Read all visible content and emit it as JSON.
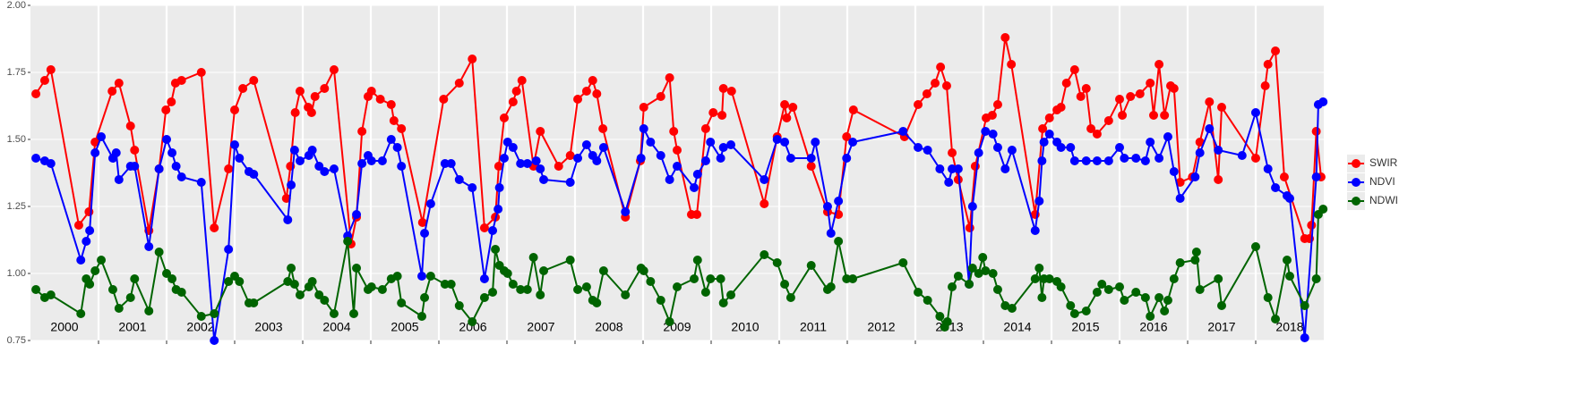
{
  "chart_data": {
    "type": "line",
    "xlim": [
      2000,
      2019
    ],
    "xticks": [
      2001,
      2002,
      2003,
      2004,
      2005,
      2006,
      2007,
      2008,
      2009,
      2010,
      2011,
      2012,
      2013,
      2014,
      2015,
      2016,
      2017,
      2018
    ],
    "year_labels": [
      "2000",
      "2001",
      "2002",
      "2003",
      "2004",
      "2005",
      "2006",
      "2007",
      "2008",
      "2009",
      "2010",
      "2011",
      "2012",
      "2013",
      "2014",
      "2015",
      "2016",
      "2017",
      "2018"
    ],
    "ylim": [
      0.75,
      2.0
    ],
    "yticks": [
      {
        "value": 0.75,
        "label": "0.75"
      },
      {
        "value": 1.0,
        "label": "1.00"
      },
      {
        "value": 1.25,
        "label": "1.25"
      },
      {
        "value": 1.5,
        "label": "1.50"
      },
      {
        "value": 1.75,
        "label": "1.75"
      },
      {
        "value": 2.0,
        "label": "2.00"
      }
    ],
    "grid": true,
    "legend": "right",
    "series": [
      {
        "name": "SWIR",
        "color": "#ff0000",
        "x": [
          2000.08,
          2000.21,
          2000.3,
          2000.71,
          2000.86,
          2000.95,
          2001.2,
          2001.3,
          2001.47,
          2001.53,
          2001.74,
          2001.89,
          2001.99,
          2002.07,
          2002.13,
          2002.22,
          2002.51,
          2002.7,
          2002.91,
          2003.0,
          2003.12,
          2003.28,
          2003.76,
          2003.82,
          2003.89,
          2003.96,
          2004.08,
          2004.13,
          2004.18,
          2004.32,
          2004.46,
          2004.71,
          2004.79,
          2004.87,
          2004.96,
          2005.01,
          2005.14,
          2005.3,
          2005.34,
          2005.45,
          2005.76,
          2006.07,
          2006.3,
          2006.49,
          2006.67,
          2006.83,
          2006.88,
          2006.96,
          2007.09,
          2007.14,
          2007.22,
          2007.39,
          2007.49,
          2007.76,
          2007.93,
          2008.04,
          2008.17,
          2008.26,
          2008.32,
          2008.41,
          2008.74,
          2008.96,
          2009.01,
          2009.26,
          2009.39,
          2009.45,
          2009.5,
          2009.71,
          2009.79,
          2009.92,
          2010.03,
          2010.16,
          2010.18,
          2010.3,
          2010.78,
          2010.97,
          2011.08,
          2011.11,
          2011.2,
          2011.47,
          2011.71,
          2011.87,
          2011.99,
          2012.09,
          2012.84,
          2013.04,
          2013.17,
          2013.29,
          2013.37,
          2013.46,
          2013.54,
          2013.63,
          2013.8,
          2013.88,
          2014.04,
          2014.13,
          2014.21,
          2014.32,
          2014.41,
          2014.76,
          2014.87,
          2014.97,
          2015.08,
          2015.14,
          2015.22,
          2015.34,
          2015.43,
          2015.51,
          2015.58,
          2015.67,
          2015.84,
          2016.0,
          2016.04,
          2016.16,
          2016.3,
          2016.45,
          2016.5,
          2016.58,
          2016.66,
          2016.75,
          2016.8,
          2016.89,
          2017.07,
          2017.18,
          2017.32,
          2017.45,
          2017.5,
          2018.0,
          2018.14,
          2018.18,
          2018.29,
          2018.42,
          2018.72,
          2018.79,
          2018.82,
          2018.89,
          2018.96
        ],
        "values": [
          1.67,
          1.72,
          1.76,
          1.18,
          1.23,
          1.49,
          1.68,
          1.71,
          1.55,
          1.46,
          1.16,
          1.39,
          1.61,
          1.64,
          1.71,
          1.72,
          1.75,
          1.17,
          1.39,
          1.61,
          1.69,
          1.72,
          1.28,
          1.4,
          1.6,
          1.68,
          1.62,
          1.6,
          1.66,
          1.69,
          1.76,
          1.11,
          1.21,
          1.53,
          1.66,
          1.68,
          1.65,
          1.63,
          1.57,
          1.54,
          1.19,
          1.65,
          1.71,
          1.8,
          1.17,
          1.21,
          1.4,
          1.58,
          1.64,
          1.68,
          1.72,
          1.4,
          1.53,
          1.4,
          1.44,
          1.65,
          1.68,
          1.72,
          1.67,
          1.54,
          1.21,
          1.42,
          1.62,
          1.66,
          1.73,
          1.53,
          1.46,
          1.22,
          1.22,
          1.54,
          1.6,
          1.59,
          1.69,
          1.68,
          1.26,
          1.51,
          1.63,
          1.58,
          1.62,
          1.4,
          1.23,
          1.22,
          1.51,
          1.61,
          1.51,
          1.63,
          1.67,
          1.71,
          1.77,
          1.7,
          1.45,
          1.35,
          1.17,
          1.4,
          1.58,
          1.59,
          1.63,
          1.88,
          1.78,
          1.22,
          1.54,
          1.58,
          1.61,
          1.62,
          1.71,
          1.76,
          1.66,
          1.69,
          1.54,
          1.52,
          1.57,
          1.65,
          1.59,
          1.66,
          1.67,
          1.71,
          1.59,
          1.78,
          1.59,
          1.7,
          1.69,
          1.34,
          1.36,
          1.49,
          1.64,
          1.35,
          1.62,
          1.43,
          1.7,
          1.78,
          1.83,
          1.36,
          1.13,
          1.13,
          1.18,
          1.53,
          1.36
        ]
      },
      {
        "name": "NDVI",
        "color": "#0000ff",
        "x": [
          2000.08,
          2000.21,
          2000.3,
          2000.74,
          2000.82,
          2000.87,
          2000.95,
          2001.04,
          2001.21,
          2001.26,
          2001.3,
          2001.47,
          2001.53,
          2001.74,
          2001.89,
          2002.0,
          2002.08,
          2002.14,
          2002.22,
          2002.51,
          2002.7,
          2002.91,
          2003.0,
          2003.07,
          2003.21,
          2003.28,
          2003.78,
          2003.83,
          2003.88,
          2003.96,
          2004.09,
          2004.14,
          2004.24,
          2004.32,
          2004.46,
          2004.66,
          2004.79,
          2004.87,
          2004.96,
          2005.01,
          2005.17,
          2005.3,
          2005.39,
          2005.45,
          2005.75,
          2005.79,
          2005.88,
          2006.09,
          2006.18,
          2006.3,
          2006.49,
          2006.67,
          2006.79,
          2006.87,
          2006.89,
          2006.96,
          2007.01,
          2007.09,
          2007.2,
          2007.3,
          2007.43,
          2007.49,
          2007.54,
          2007.93,
          2008.04,
          2008.17,
          2008.26,
          2008.32,
          2008.42,
          2008.74,
          2008.97,
          2009.01,
          2009.11,
          2009.26,
          2009.39,
          2009.5,
          2009.75,
          2009.8,
          2009.92,
          2009.99,
          2010.14,
          2010.18,
          2010.29,
          2010.78,
          2010.97,
          2011.08,
          2011.17,
          2011.47,
          2011.53,
          2011.71,
          2011.76,
          2011.87,
          2011.99,
          2012.08,
          2012.82,
          2013.04,
          2013.18,
          2013.36,
          2013.49,
          2013.54,
          2013.63,
          2013.79,
          2013.84,
          2013.93,
          2014.03,
          2014.14,
          2014.21,
          2014.32,
          2014.42,
          2014.76,
          2014.82,
          2014.86,
          2014.89,
          2014.97,
          2015.08,
          2015.14,
          2015.28,
          2015.34,
          2015.51,
          2015.67,
          2015.84,
          2016.0,
          2016.07,
          2016.24,
          2016.38,
          2016.45,
          2016.58,
          2016.71,
          2016.8,
          2016.89,
          2017.11,
          2017.18,
          2017.32,
          2017.45,
          2017.8,
          2018.0,
          2018.18,
          2018.29,
          2018.46,
          2018.5,
          2018.72,
          2018.89,
          2018.92,
          2018.99
        ],
        "values": [
          1.43,
          1.42,
          1.41,
          1.05,
          1.12,
          1.16,
          1.45,
          1.51,
          1.43,
          1.45,
          1.35,
          1.4,
          1.4,
          1.1,
          1.39,
          1.5,
          1.45,
          1.4,
          1.36,
          1.34,
          0.75,
          1.09,
          1.48,
          1.43,
          1.38,
          1.37,
          1.2,
          1.33,
          1.46,
          1.42,
          1.44,
          1.46,
          1.4,
          1.38,
          1.39,
          1.14,
          1.22,
          1.41,
          1.44,
          1.42,
          1.42,
          1.5,
          1.47,
          1.4,
          0.99,
          1.15,
          1.26,
          1.41,
          1.41,
          1.35,
          1.32,
          0.98,
          1.16,
          1.24,
          1.32,
          1.43,
          1.49,
          1.47,
          1.41,
          1.41,
          1.42,
          1.39,
          1.35,
          1.34,
          1.43,
          1.48,
          1.44,
          1.42,
          1.47,
          1.23,
          1.43,
          1.54,
          1.49,
          1.44,
          1.35,
          1.4,
          1.32,
          1.37,
          1.42,
          1.49,
          1.43,
          1.47,
          1.48,
          1.35,
          1.5,
          1.49,
          1.43,
          1.43,
          1.49,
          1.25,
          1.15,
          1.27,
          1.43,
          1.49,
          1.53,
          1.47,
          1.46,
          1.39,
          1.34,
          1.39,
          1.39,
          0.96,
          1.25,
          1.45,
          1.53,
          1.52,
          1.47,
          1.39,
          1.46,
          1.16,
          1.27,
          1.42,
          1.49,
          1.52,
          1.49,
          1.47,
          1.47,
          1.42,
          1.42,
          1.42,
          1.42,
          1.47,
          1.43,
          1.43,
          1.42,
          1.49,
          1.43,
          1.51,
          1.38,
          1.28,
          1.36,
          1.45,
          1.54,
          1.46,
          1.44,
          1.6,
          1.39,
          1.32,
          1.29,
          1.28,
          0.76,
          1.36,
          1.63,
          1.64
        ]
      },
      {
        "name": "NDWI",
        "color": "#006400",
        "x": [
          2000.08,
          2000.21,
          2000.3,
          2000.74,
          2000.82,
          2000.87,
          2000.95,
          2001.04,
          2001.21,
          2001.3,
          2001.47,
          2001.53,
          2001.74,
          2001.89,
          2002.0,
          2002.08,
          2002.14,
          2002.22,
          2002.51,
          2002.7,
          2002.91,
          2003.0,
          2003.07,
          2003.21,
          2003.28,
          2003.78,
          2003.83,
          2003.88,
          2003.96,
          2004.09,
          2004.14,
          2004.24,
          2004.32,
          2004.46,
          2004.66,
          2004.75,
          2004.79,
          2004.96,
          2005.01,
          2005.17,
          2005.3,
          2005.39,
          2005.45,
          2005.75,
          2005.79,
          2005.88,
          2006.09,
          2006.18,
          2006.3,
          2006.49,
          2006.67,
          2006.79,
          2006.83,
          2006.89,
          2006.96,
          2007.01,
          2007.09,
          2007.2,
          2007.3,
          2007.39,
          2007.49,
          2007.54,
          2007.93,
          2008.04,
          2008.17,
          2008.26,
          2008.32,
          2008.42,
          2008.74,
          2008.97,
          2009.01,
          2009.11,
          2009.26,
          2009.39,
          2009.5,
          2009.75,
          2009.8,
          2009.92,
          2009.99,
          2010.14,
          2010.18,
          2010.29,
          2010.78,
          2010.97,
          2011.08,
          2011.17,
          2011.47,
          2011.71,
          2011.76,
          2011.87,
          2011.99,
          2012.08,
          2012.82,
          2013.04,
          2013.18,
          2013.36,
          2013.43,
          2013.47,
          2013.54,
          2013.63,
          2013.79,
          2013.84,
          2013.93,
          2013.99,
          2014.03,
          2014.14,
          2014.21,
          2014.32,
          2014.42,
          2014.76,
          2014.82,
          2014.86,
          2014.89,
          2014.97,
          2015.08,
          2015.14,
          2015.28,
          2015.34,
          2015.51,
          2015.67,
          2015.74,
          2015.84,
          2016.0,
          2016.07,
          2016.24,
          2016.38,
          2016.45,
          2016.58,
          2016.66,
          2016.71,
          2016.8,
          2016.89,
          2017.11,
          2017.13,
          2017.18,
          2017.45,
          2017.5,
          2018.0,
          2018.18,
          2018.29,
          2018.46,
          2018.5,
          2018.72,
          2018.89,
          2018.92,
          2018.99
        ],
        "values": [
          0.94,
          0.91,
          0.92,
          0.85,
          0.98,
          0.96,
          1.01,
          1.05,
          0.94,
          0.87,
          0.91,
          0.98,
          0.86,
          1.08,
          1.0,
          0.98,
          0.94,
          0.93,
          0.84,
          0.85,
          0.97,
          0.99,
          0.97,
          0.89,
          0.89,
          0.97,
          1.02,
          0.96,
          0.92,
          0.95,
          0.97,
          0.92,
          0.9,
          0.85,
          1.12,
          0.85,
          1.02,
          0.94,
          0.95,
          0.94,
          0.98,
          0.99,
          0.89,
          0.84,
          0.91,
          0.99,
          0.96,
          0.96,
          0.88,
          0.82,
          0.91,
          0.93,
          1.09,
          1.03,
          1.01,
          1.0,
          0.96,
          0.94,
          0.94,
          1.06,
          0.92,
          1.01,
          1.05,
          0.94,
          0.95,
          0.9,
          0.89,
          1.01,
          0.92,
          1.02,
          1.01,
          0.97,
          0.9,
          0.82,
          0.95,
          0.98,
          1.05,
          0.93,
          0.98,
          0.98,
          0.89,
          0.92,
          1.07,
          1.04,
          0.96,
          0.91,
          1.03,
          0.94,
          0.95,
          1.12,
          0.98,
          0.98,
          1.04,
          0.93,
          0.9,
          0.84,
          0.8,
          0.82,
          0.95,
          0.99,
          0.96,
          1.02,
          1.0,
          1.06,
          1.01,
          1.0,
          0.94,
          0.88,
          0.87,
          0.98,
          1.02,
          0.91,
          0.98,
          0.98,
          0.97,
          0.95,
          0.88,
          0.85,
          0.86,
          0.93,
          0.96,
          0.94,
          0.95,
          0.9,
          0.93,
          0.91,
          0.84,
          0.91,
          0.86,
          0.9,
          0.98,
          1.04,
          1.05,
          1.08,
          0.94,
          0.98,
          0.88,
          1.1,
          0.91,
          0.83,
          1.05,
          0.99,
          0.88,
          0.98,
          1.22,
          1.24
        ]
      }
    ]
  }
}
